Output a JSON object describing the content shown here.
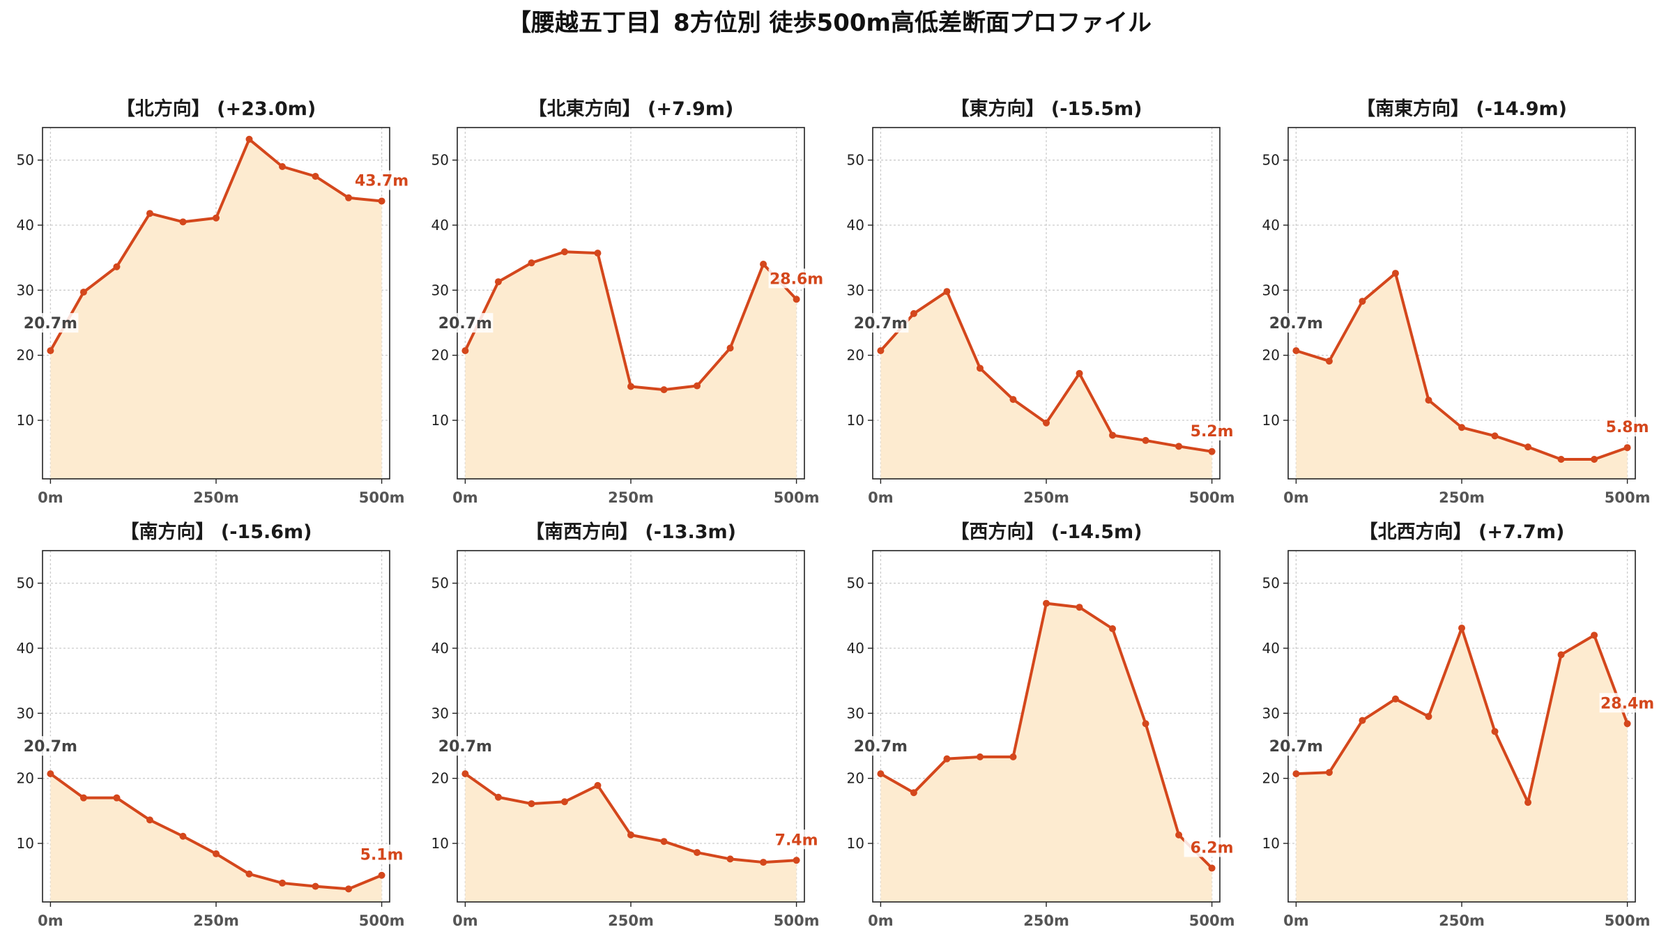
{
  "figure_title": "【腰越五丁目】8方位別 徒歩500m高低差断面プロファイル",
  "colors": {
    "line": "#d4471c",
    "fill": "#fdebd0",
    "end_label": "#d4471c",
    "start_label": "#444444",
    "grid": "#cccccc"
  },
  "chart_data": [
    {
      "type": "area",
      "title": "【北方向】 (+23.0m)",
      "x": [
        0,
        50,
        100,
        150,
        200,
        250,
        300,
        350,
        400,
        450,
        500
      ],
      "y": [
        20.7,
        29.7,
        33.6,
        41.8,
        40.5,
        41.1,
        53.2,
        49.0,
        47.5,
        44.2,
        43.7
      ],
      "start_label": "20.7m",
      "end_label": "43.7m",
      "xticks": [
        "0m",
        "250m",
        "500m"
      ],
      "yticks": [
        10,
        20,
        30,
        40,
        50
      ],
      "xlim": [
        -12,
        512
      ],
      "ylim": [
        1,
        55
      ],
      "grid": true
    },
    {
      "type": "area",
      "title": "【北東方向】 (+7.9m)",
      "x": [
        0,
        50,
        100,
        150,
        200,
        250,
        300,
        350,
        400,
        450,
        500
      ],
      "y": [
        20.7,
        31.3,
        34.2,
        35.9,
        35.7,
        15.2,
        14.7,
        15.3,
        21.1,
        34.0,
        28.6
      ],
      "start_label": "20.7m",
      "end_label": "28.6m",
      "xticks": [
        "0m",
        "250m",
        "500m"
      ],
      "yticks": [
        10,
        20,
        30,
        40,
        50
      ],
      "xlim": [
        -12,
        512
      ],
      "ylim": [
        1,
        55
      ],
      "grid": true
    },
    {
      "type": "area",
      "title": "【東方向】 (-15.5m)",
      "x": [
        0,
        50,
        100,
        150,
        200,
        250,
        300,
        350,
        400,
        450,
        500
      ],
      "y": [
        20.7,
        26.4,
        29.8,
        18.0,
        13.2,
        9.6,
        17.2,
        7.7,
        6.9,
        6.0,
        5.2
      ],
      "start_label": "20.7m",
      "end_label": "5.2m",
      "xticks": [
        "0m",
        "250m",
        "500m"
      ],
      "yticks": [
        10,
        20,
        30,
        40,
        50
      ],
      "xlim": [
        -12,
        512
      ],
      "ylim": [
        1,
        55
      ],
      "grid": true
    },
    {
      "type": "area",
      "title": "【南東方向】 (-14.9m)",
      "x": [
        0,
        50,
        100,
        150,
        200,
        250,
        300,
        350,
        400,
        450,
        500
      ],
      "y": [
        20.7,
        19.1,
        28.3,
        32.6,
        13.1,
        8.9,
        7.6,
        5.9,
        4.0,
        4.0,
        5.8
      ],
      "start_label": "20.7m",
      "end_label": "5.8m",
      "xticks": [
        "0m",
        "250m",
        "500m"
      ],
      "yticks": [
        10,
        20,
        30,
        40,
        50
      ],
      "xlim": [
        -12,
        512
      ],
      "ylim": [
        1,
        55
      ],
      "grid": true
    },
    {
      "type": "area",
      "title": "【南方向】 (-15.6m)",
      "x": [
        0,
        50,
        100,
        150,
        200,
        250,
        300,
        350,
        400,
        450,
        500
      ],
      "y": [
        20.7,
        17.0,
        17.0,
        13.6,
        11.1,
        8.4,
        5.3,
        3.9,
        3.4,
        3.0,
        5.1
      ],
      "start_label": "20.7m",
      "end_label": "5.1m",
      "xticks": [
        "0m",
        "250m",
        "500m"
      ],
      "yticks": [
        10,
        20,
        30,
        40,
        50
      ],
      "xlim": [
        -12,
        512
      ],
      "ylim": [
        1,
        55
      ],
      "grid": true
    },
    {
      "type": "area",
      "title": "【南西方向】 (-13.3m)",
      "x": [
        0,
        50,
        100,
        150,
        200,
        250,
        300,
        350,
        400,
        450,
        500
      ],
      "y": [
        20.7,
        17.1,
        16.1,
        16.4,
        18.9,
        11.3,
        10.3,
        8.6,
        7.6,
        7.1,
        7.4
      ],
      "start_label": "20.7m",
      "end_label": "7.4m",
      "xticks": [
        "0m",
        "250m",
        "500m"
      ],
      "yticks": [
        10,
        20,
        30,
        40,
        50
      ],
      "xlim": [
        -12,
        512
      ],
      "ylim": [
        1,
        55
      ],
      "grid": true
    },
    {
      "type": "area",
      "title": "【西方向】 (-14.5m)",
      "x": [
        0,
        50,
        100,
        150,
        200,
        250,
        300,
        350,
        400,
        450,
        500
      ],
      "y": [
        20.7,
        17.8,
        23.0,
        23.3,
        23.3,
        46.9,
        46.3,
        43.0,
        28.4,
        11.3,
        6.2
      ],
      "start_label": "20.7m",
      "end_label": "6.2m",
      "xticks": [
        "0m",
        "250m",
        "500m"
      ],
      "yticks": [
        10,
        20,
        30,
        40,
        50
      ],
      "xlim": [
        -12,
        512
      ],
      "ylim": [
        1,
        55
      ],
      "grid": true
    },
    {
      "type": "area",
      "title": "【北西方向】 (+7.7m)",
      "x": [
        0,
        50,
        100,
        150,
        200,
        250,
        300,
        350,
        400,
        450,
        500
      ],
      "y": [
        20.7,
        20.9,
        28.9,
        32.2,
        29.5,
        43.1,
        27.2,
        16.3,
        39.0,
        42.0,
        28.4
      ],
      "start_label": "20.7m",
      "end_label": "28.4m",
      "xticks": [
        "0m",
        "250m",
        "500m"
      ],
      "yticks": [
        10,
        20,
        30,
        40,
        50
      ],
      "xlim": [
        -12,
        512
      ],
      "ylim": [
        1,
        55
      ],
      "grid": true
    }
  ]
}
